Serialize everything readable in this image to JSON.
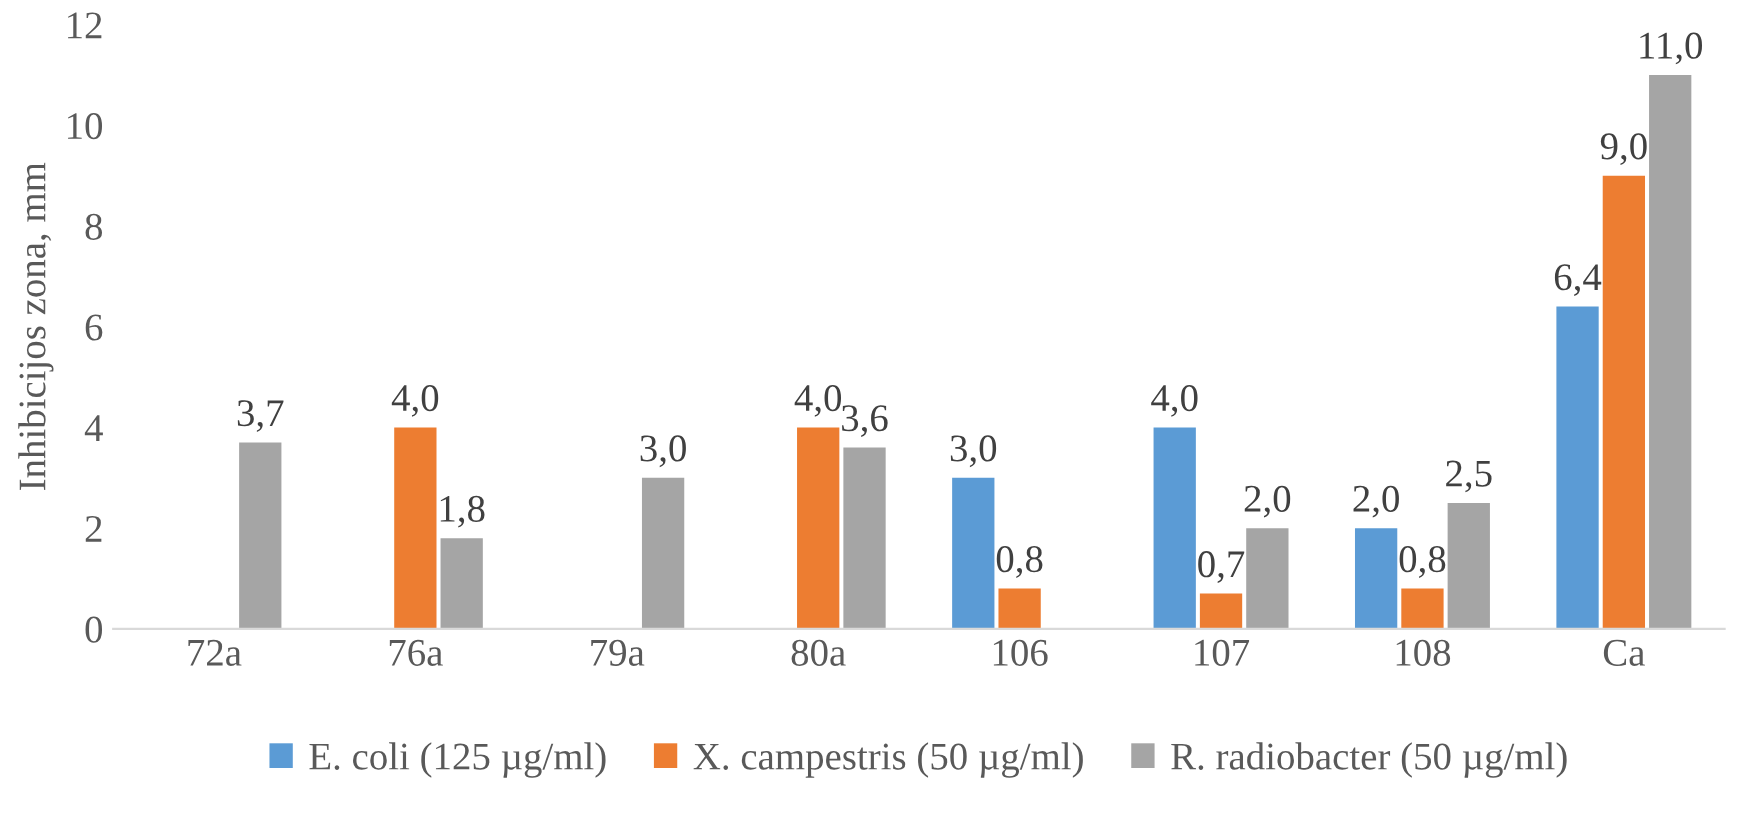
{
  "chart_data": {
    "type": "bar",
    "ylabel": "Inhibicijos zona, mm",
    "categories": [
      "72a",
      "76a",
      "79a",
      "80a",
      "106",
      "107",
      "108",
      "Ca"
    ],
    "series": [
      {
        "name": "E. coli (125 µg/ml)",
        "color": "#5b9bd5",
        "values": [
          null,
          null,
          null,
          null,
          3.0,
          4.0,
          2.0,
          6.4
        ],
        "value_labels": [
          null,
          null,
          null,
          null,
          "3,0",
          "4,0",
          "2,0",
          "6,4"
        ]
      },
      {
        "name": "X. campestris (50 µg/ml)",
        "color": "#ed7d31",
        "values": [
          null,
          4.0,
          null,
          4.0,
          0.8,
          0.7,
          0.8,
          9.0
        ],
        "value_labels": [
          null,
          "4,0",
          null,
          "4,0",
          "0,8",
          "0,7",
          "0,8",
          "9,0"
        ]
      },
      {
        "name": "R. radiobacter (50 µg/ml)",
        "color": "#a5a5a5",
        "values": [
          3.7,
          1.8,
          3.0,
          3.6,
          null,
          2.0,
          2.5,
          11.0
        ],
        "value_labels": [
          "3,7",
          "1,8",
          "3,0",
          "3,6",
          null,
          "2,0",
          "2,5",
          "11,0"
        ]
      }
    ],
    "ylim": [
      0,
      12
    ],
    "yticks": [
      0,
      2,
      4,
      6,
      8,
      10,
      12
    ],
    "grid": false,
    "legend": "bottom"
  }
}
